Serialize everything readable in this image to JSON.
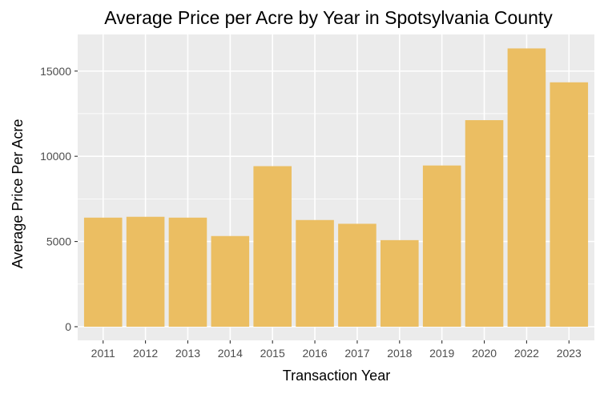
{
  "chart_data": {
    "type": "bar",
    "title": "Average Price per Acre by Year in Spotsylvania County",
    "xlabel": "Transaction Year",
    "ylabel": "Average Price Per Acre",
    "categories": [
      "2011",
      "2012",
      "2013",
      "2014",
      "2015",
      "2016",
      "2017",
      "2018",
      "2019",
      "2020",
      "2022",
      "2023"
    ],
    "values": [
      6400,
      6450,
      6400,
      5320,
      9420,
      6260,
      6040,
      5080,
      9460,
      12120,
      16330,
      14340
    ],
    "y_ticks": [
      0,
      5000,
      10000,
      15000
    ],
    "y_tick_labels": [
      "0",
      "5000",
      "10000",
      "15000"
    ],
    "ylim": [
      -800,
      17150
    ],
    "grid": true,
    "legend": "none",
    "colors": {
      "bar": "#EBBE62",
      "panel_background": "#EBEBEB",
      "gridline": "#FFFFFF",
      "tick_label": "#4D4D4D",
      "tick_mark": "#333333"
    }
  }
}
